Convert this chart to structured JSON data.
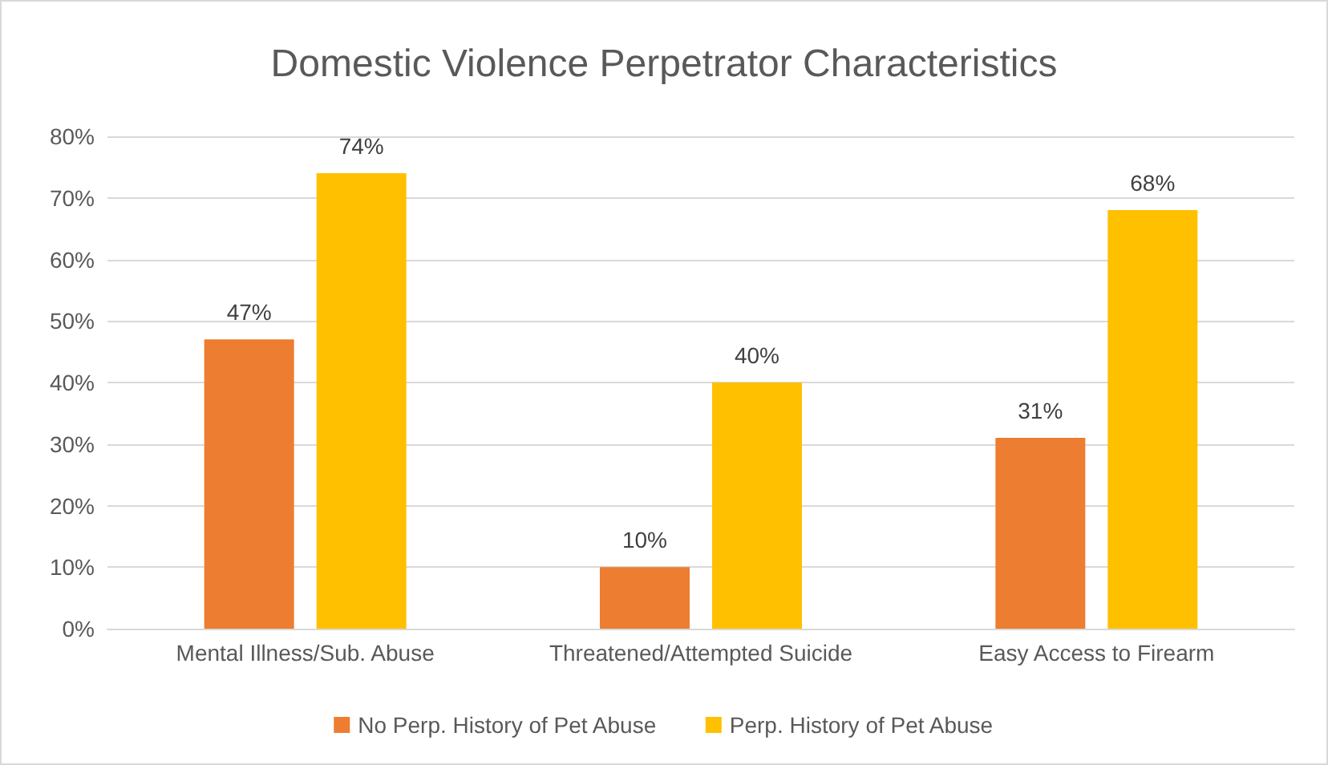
{
  "chart_data": {
    "type": "bar",
    "title": "Domestic Violence Perpetrator Characteristics",
    "categories": [
      "Mental Illness/Sub. Abuse",
      "Threatened/Attempted Suicide",
      "Easy Access to Firearm"
    ],
    "series": [
      {
        "name": "No Perp. History of Pet Abuse",
        "color": "#ed7d31",
        "values": [
          47,
          10,
          31
        ],
        "value_labels": [
          "47%",
          "10%",
          "31%"
        ]
      },
      {
        "name": "Perp. History of Pet Abuse",
        "color": "#ffc000",
        "values": [
          74,
          40,
          68
        ],
        "value_labels": [
          "74%",
          "40%",
          "68%"
        ]
      }
    ],
    "ylim": [
      0,
      80
    ],
    "yticks": [
      {
        "value": 0,
        "label": "0%"
      },
      {
        "value": 10,
        "label": "10%"
      },
      {
        "value": 20,
        "label": "20%"
      },
      {
        "value": 30,
        "label": "30%"
      },
      {
        "value": 40,
        "label": "40%"
      },
      {
        "value": 50,
        "label": "50%"
      },
      {
        "value": 60,
        "label": "60%"
      },
      {
        "value": 70,
        "label": "70%"
      },
      {
        "value": 80,
        "label": "80%"
      }
    ],
    "grid": "y",
    "legend": "bottom"
  }
}
